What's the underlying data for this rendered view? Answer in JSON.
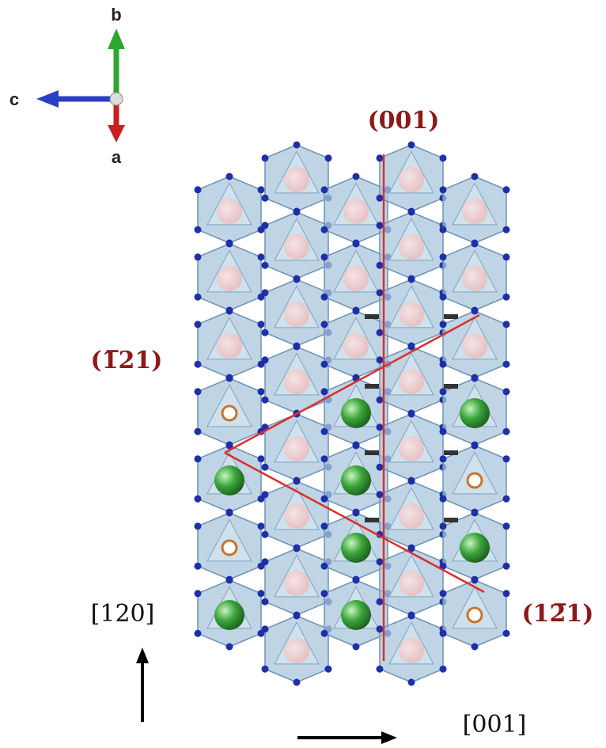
{
  "axes": {
    "b": "b",
    "c": "c",
    "a": "a"
  },
  "planes": {
    "p001": "(001)",
    "pm121": "(1̅21)",
    "p1m21": "(12̅1)"
  },
  "directions": {
    "d120": "[120]",
    "d001": "[001]"
  }
}
